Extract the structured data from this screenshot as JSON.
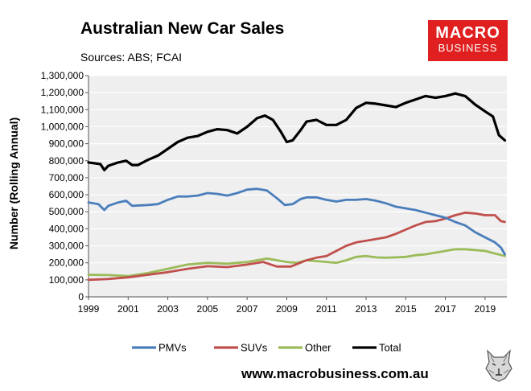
{
  "header": {
    "title": "Australian New Car Sales",
    "subtitle": "Sources: ABS; FCAI"
  },
  "logo": {
    "line1": "MACRO",
    "line2": "BUSINESS"
  },
  "footer": {
    "url": "www.macrobusiness.com.au"
  },
  "colors": {
    "PMVs": "#4a7ebb",
    "SUVs": "#c0504d",
    "Other": "#9bbb59",
    "Total": "#000000",
    "plot_bg": "#efefef",
    "brand": "#e02020"
  },
  "chart_data": {
    "type": "line",
    "title": "Australian New Car Sales",
    "xlabel": "",
    "ylabel": "Number (Rolling Annual)",
    "xlim": [
      1999,
      2020.1
    ],
    "ylim": [
      0,
      1300000
    ],
    "yticks": [
      0,
      100000,
      200000,
      300000,
      400000,
      500000,
      600000,
      700000,
      800000,
      900000,
      1000000,
      1100000,
      1200000,
      1300000
    ],
    "ytick_labels": [
      "0",
      "100,000",
      "200,000",
      "300,000",
      "400,000",
      "500,000",
      "600,000",
      "700,000",
      "800,000",
      "900,000",
      "1,000,000",
      "1,100,000",
      "1,200,000",
      "1,300,000"
    ],
    "xticks": [
      1999,
      2001,
      2003,
      2005,
      2007,
      2009,
      2011,
      2013,
      2015,
      2017,
      2019
    ],
    "xtick_labels": [
      "1999",
      "2001",
      "2003",
      "2005",
      "2007",
      "2009",
      "2011",
      "2013",
      "2015",
      "2017",
      "2019"
    ],
    "grid": "horizontal",
    "legend_position": "bottom",
    "series": [
      {
        "name": "PMVs",
        "x": [
          1999,
          1999.5,
          1999.8,
          2000,
          2000.5,
          2000.9,
          2001.2,
          2002,
          2002.5,
          2003,
          2003.5,
          2004,
          2004.5,
          2005,
          2005.5,
          2006,
          2006.5,
          2007,
          2007.5,
          2008,
          2008.5,
          2008.9,
          2009.3,
          2009.7,
          2010,
          2010.5,
          2011,
          2011.5,
          2012,
          2012.5,
          2013,
          2013.5,
          2014,
          2014.5,
          2015,
          2015.5,
          2016,
          2016.5,
          2017,
          2017.5,
          2018,
          2018.5,
          2019,
          2019.5,
          2019.8,
          2020
        ],
        "values": [
          555000,
          545000,
          510000,
          535000,
          555000,
          565000,
          535000,
          540000,
          545000,
          570000,
          590000,
          590000,
          595000,
          610000,
          605000,
          595000,
          610000,
          630000,
          635000,
          625000,
          580000,
          540000,
          545000,
          575000,
          585000,
          585000,
          570000,
          560000,
          570000,
          570000,
          575000,
          565000,
          550000,
          530000,
          520000,
          510000,
          495000,
          480000,
          465000,
          440000,
          420000,
          380000,
          350000,
          320000,
          290000,
          250000
        ]
      },
      {
        "name": "SUVs",
        "x": [
          1999,
          2000,
          2001,
          2002,
          2003,
          2004,
          2005,
          2006,
          2007,
          2007.8,
          2008.5,
          2009.2,
          2010,
          2010.5,
          2011,
          2011.5,
          2012,
          2012.5,
          2013,
          2013.5,
          2014,
          2014.5,
          2015,
          2015.5,
          2016,
          2016.5,
          2017,
          2017.5,
          2018,
          2018.5,
          2019,
          2019.5,
          2019.8,
          2020
        ],
        "values": [
          100000,
          105000,
          115000,
          130000,
          145000,
          165000,
          180000,
          175000,
          190000,
          205000,
          178000,
          178000,
          215000,
          230000,
          240000,
          270000,
          300000,
          320000,
          330000,
          340000,
          350000,
          370000,
          395000,
          420000,
          440000,
          445000,
          460000,
          480000,
          495000,
          490000,
          480000,
          480000,
          445000,
          440000
        ]
      },
      {
        "name": "Other",
        "x": [
          1999,
          2000,
          2001,
          2002,
          2003,
          2004,
          2005,
          2006,
          2007,
          2008,
          2009,
          2009.5,
          2010,
          2010.5,
          2011,
          2011.5,
          2012,
          2012.5,
          2013,
          2013.5,
          2014,
          2014.5,
          2015,
          2015.5,
          2016,
          2016.5,
          2017,
          2017.5,
          2018,
          2018.5,
          2019,
          2019.5,
          2020
        ],
        "values": [
          130000,
          128000,
          122000,
          140000,
          165000,
          190000,
          200000,
          195000,
          205000,
          225000,
          205000,
          200000,
          215000,
          210000,
          205000,
          200000,
          215000,
          235000,
          240000,
          232000,
          230000,
          232000,
          235000,
          245000,
          250000,
          260000,
          270000,
          280000,
          280000,
          275000,
          270000,
          255000,
          240000
        ]
      },
      {
        "name": "Total",
        "x": [
          1999,
          1999.3,
          1999.6,
          1999.8,
          2000,
          2000.5,
          2000.9,
          2001.2,
          2001.5,
          2002,
          2002.5,
          2003,
          2003.5,
          2004,
          2004.5,
          2005,
          2005.5,
          2006,
          2006.5,
          2007,
          2007.5,
          2007.9,
          2008.3,
          2008.7,
          2009,
          2009.3,
          2009.7,
          2010,
          2010.5,
          2011,
          2011.5,
          2012,
          2012.5,
          2013,
          2013.5,
          2014,
          2014.5,
          2015,
          2015.5,
          2016,
          2016.5,
          2017,
          2017.5,
          2018,
          2018.5,
          2019,
          2019.4,
          2019.7,
          2020
        ],
        "values": [
          790000,
          785000,
          780000,
          745000,
          770000,
          790000,
          800000,
          775000,
          775000,
          805000,
          830000,
          870000,
          910000,
          935000,
          945000,
          970000,
          985000,
          980000,
          960000,
          1000000,
          1050000,
          1065000,
          1040000,
          970000,
          910000,
          920000,
          980000,
          1030000,
          1040000,
          1010000,
          1010000,
          1040000,
          1110000,
          1140000,
          1135000,
          1125000,
          1115000,
          1140000,
          1160000,
          1180000,
          1170000,
          1180000,
          1195000,
          1180000,
          1130000,
          1090000,
          1060000,
          950000,
          920000
        ]
      }
    ]
  }
}
